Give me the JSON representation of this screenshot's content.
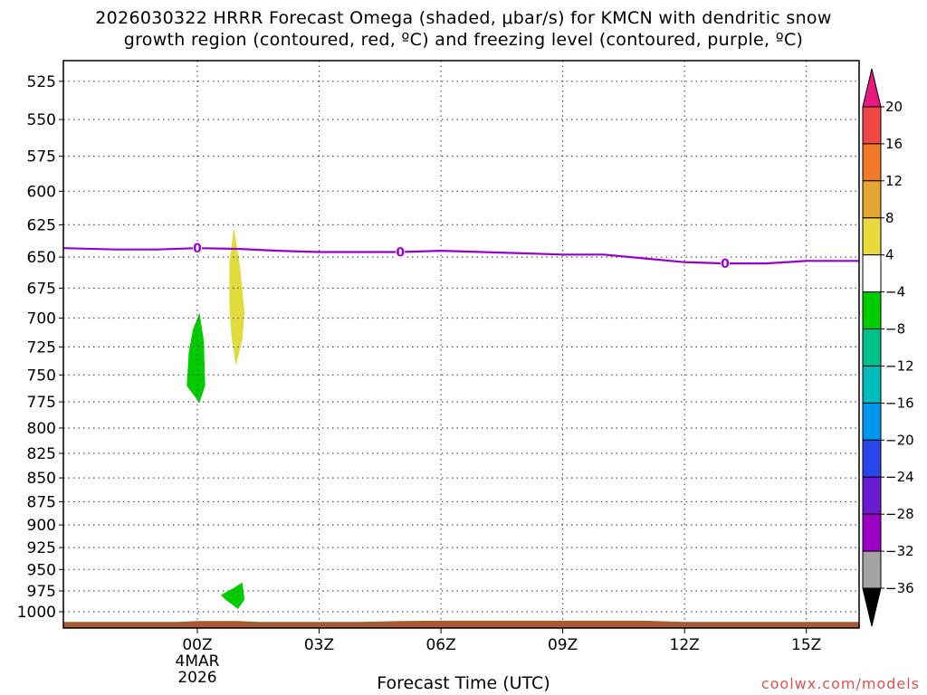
{
  "title": {
    "line1": "2026030322 HRRR Forecast Omega (shaded, μbar/s) for KMCN with dendritic snow",
    "line2": "growth region (contoured, red, ºC) and freezing level (contoured, purple, ºC)"
  },
  "credit": "coolwx.com/models",
  "chart_data": {
    "type": "contour",
    "xlabel": "Forecast Time (UTC)",
    "x_unit": "hours from 2026-03-04 00Z",
    "xlim": [
      -3.3,
      16.3
    ],
    "x_ticks": [
      {
        "value": 0,
        "label": "00Z",
        "sub": [
          "4MAR",
          "2026"
        ]
      },
      {
        "value": 3,
        "label": "03Z",
        "sub": []
      },
      {
        "value": 6,
        "label": "06Z",
        "sub": []
      },
      {
        "value": 9,
        "label": "09Z",
        "sub": []
      },
      {
        "value": 12,
        "label": "12Z",
        "sub": []
      },
      {
        "value": 15,
        "label": "15Z",
        "sub": []
      }
    ],
    "ylabel": "",
    "y_unit": "hPa",
    "ylim": [
      512,
      1020
    ],
    "y_scale": "log",
    "y_ticks": [
      525,
      550,
      575,
      600,
      625,
      650,
      675,
      700,
      725,
      750,
      775,
      800,
      825,
      850,
      875,
      900,
      925,
      950,
      975,
      1000
    ],
    "grid": true,
    "freezing_level": {
      "color": "#9900cc",
      "contour_label": "0",
      "label_x": [
        0,
        5,
        13
      ],
      "points": [
        [
          -3.3,
          643
        ],
        [
          -2,
          644
        ],
        [
          -1,
          644
        ],
        [
          0,
          643
        ],
        [
          1,
          643.5
        ],
        [
          2,
          645
        ],
        [
          3,
          646
        ],
        [
          4,
          646
        ],
        [
          5,
          646
        ],
        [
          6,
          645
        ],
        [
          7,
          646
        ],
        [
          8,
          647
        ],
        [
          9,
          648
        ],
        [
          10,
          648
        ],
        [
          11,
          651
        ],
        [
          12,
          654
        ],
        [
          13,
          655
        ],
        [
          14,
          655
        ],
        [
          15,
          653
        ],
        [
          16,
          653
        ],
        [
          16.3,
          653
        ]
      ]
    },
    "omega_regions": [
      {
        "value_range": "4 to 8",
        "color": "#e0dc3c",
        "points": [
          [
            0.9,
            629
          ],
          [
            1.05,
            660
          ],
          [
            1.15,
            695
          ],
          [
            1.1,
            718
          ],
          [
            0.95,
            740
          ],
          [
            0.85,
            715
          ],
          [
            0.8,
            690
          ],
          [
            0.8,
            655
          ]
        ]
      },
      {
        "value_range": "-8 to -4",
        "color": "#00cc00",
        "points": [
          [
            0.05,
            697
          ],
          [
            0.15,
            720
          ],
          [
            0.18,
            760
          ],
          [
            0.05,
            775
          ],
          [
            -0.25,
            760
          ],
          [
            -0.2,
            730
          ],
          [
            -0.1,
            710
          ]
        ]
      },
      {
        "value_range": "-8 to -4",
        "color": "#00cc00",
        "points": [
          [
            0.6,
            980
          ],
          [
            0.9,
            972
          ],
          [
            1.1,
            966
          ],
          [
            1.15,
            985
          ],
          [
            1.0,
            996
          ],
          [
            0.7,
            985
          ]
        ]
      }
    ],
    "terrain": {
      "color": "#a85a32",
      "points": [
        [
          -3.3,
          1013
        ],
        [
          -0.5,
          1013
        ],
        [
          0,
          1012
        ],
        [
          1,
          1012
        ],
        [
          1.5,
          1013
        ],
        [
          4,
          1013
        ],
        [
          5,
          1012
        ],
        [
          6,
          1011.5
        ],
        [
          9,
          1011.5
        ],
        [
          11,
          1011.5
        ],
        [
          12,
          1013
        ],
        [
          16.3,
          1013
        ]
      ]
    },
    "colorbar": {
      "labels": [
        "20",
        "16",
        "12",
        "8",
        "4",
        "−4",
        "−8",
        "−12",
        "−16",
        "−20",
        "−24",
        "−28",
        "−32",
        "−36"
      ],
      "top_arrow_color": "#e5197f",
      "bottom_arrow_color": "#000000",
      "bins": [
        "#f04646",
        "#f07a2a",
        "#e4a532",
        "#e8da3c",
        "#ffffff",
        "#00cc00",
        "#00c08a",
        "#00bcbc",
        "#0096ee",
        "#2a46e8",
        "#6a1ad0",
        "#9c00c4",
        "#a4a4a4"
      ]
    }
  }
}
